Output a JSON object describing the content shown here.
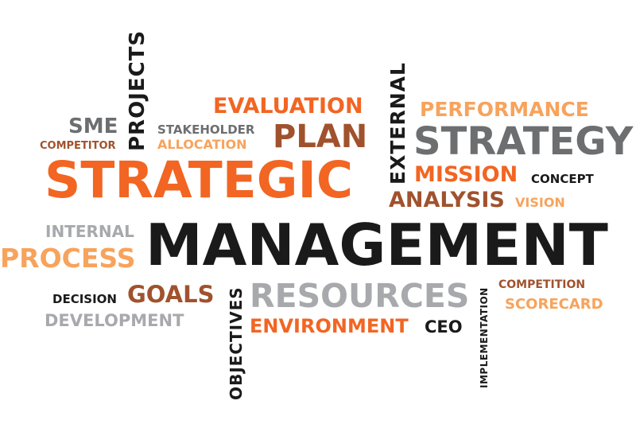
{
  "colors": {
    "orange": "#f26522",
    "light_orange": "#f7a35c",
    "brown": "#a0522d",
    "gray": "#6d6e70",
    "light_gray": "#a7a9ac",
    "black": "#1a1a1a"
  },
  "words": {
    "projects": "PROJECTS",
    "sme": "SME",
    "competitor": "COMPETITOR",
    "stakeholder": "STAKEHOLDER",
    "allocation": "ALLOCATION",
    "evaluation": "EVALUATION",
    "plan": "PLAN",
    "external": "EXTERNAL",
    "performance": "PERFORMANCE",
    "strategy": "STRATEGY",
    "strategic": "STRATEGIC",
    "mission": "MISSION",
    "concept": "CONCEPT",
    "analysis": "ANALYSIS",
    "vision": "VISION",
    "internal": "INTERNAL",
    "management": "MANAGEMENT",
    "process": "PROCESS",
    "decision": "DECISION",
    "goals": "GOALS",
    "development": "DEVELOPMENT",
    "objectives": "OBJECTIVES",
    "resources": "RESOURCES",
    "environment": "ENVIRONMENT",
    "ceo": "CEO",
    "implementation": "IMPLEMENTATION",
    "competition": "COMPETITION",
    "scorecard": "SCORECARD"
  }
}
